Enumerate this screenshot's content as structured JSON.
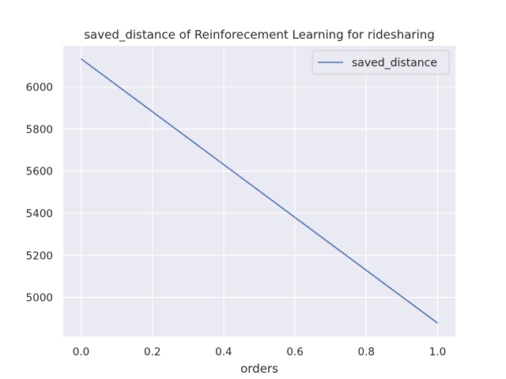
{
  "chart_data": {
    "type": "line",
    "title": "saved_distance of Reinforecement Learning for ridesharing",
    "xlabel": "orders",
    "ylabel": "",
    "x_ticks": [
      "0.0",
      "0.2",
      "0.4",
      "0.6",
      "0.8",
      "1.0"
    ],
    "y_ticks": [
      "5000",
      "5200",
      "5400",
      "5600",
      "5800",
      "6000"
    ],
    "xlim": [
      -0.05,
      1.05
    ],
    "ylim": [
      4815,
      6195
    ],
    "grid": true,
    "legend_position": "top-right",
    "background_color": "#eaeaf2",
    "grid_color": "#ffffff",
    "series": [
      {
        "name": "saved_distance",
        "color": "#4c72b0",
        "x": [
          0.0,
          1.0
        ],
        "y": [
          6133,
          4878
        ]
      }
    ]
  }
}
